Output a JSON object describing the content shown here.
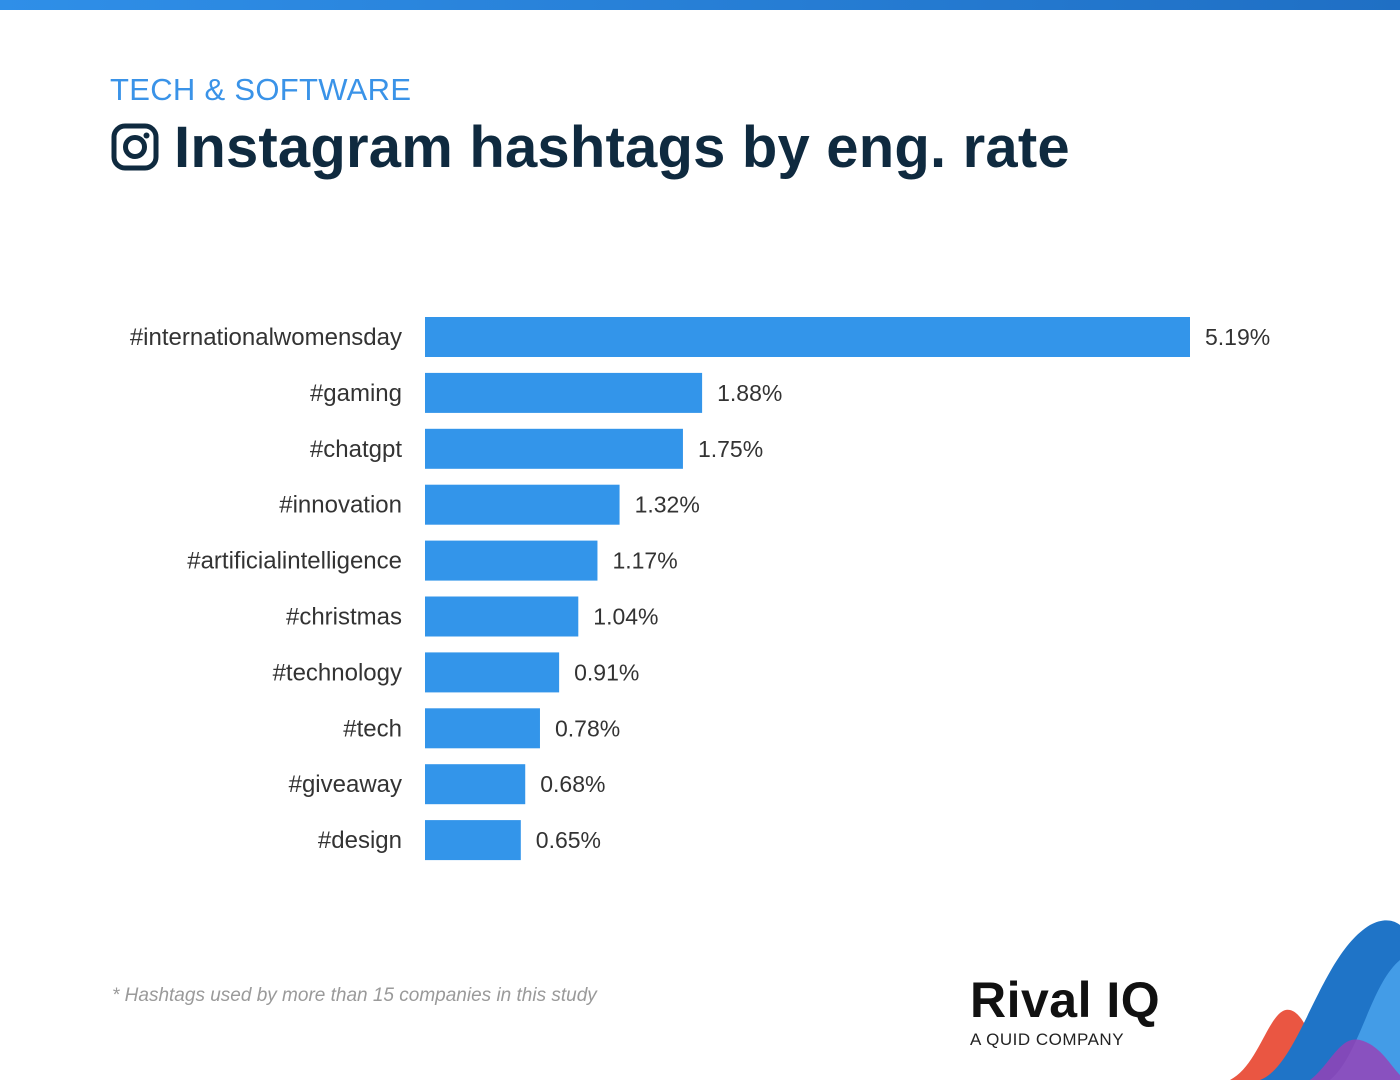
{
  "header": {
    "category": "TECH & SOFTWARE",
    "title": "Instagram hashtags by eng. rate",
    "icon": "instagram-icon"
  },
  "footer": {
    "footnote": "* Hashtags used by more than 15 companies in this study",
    "logo_name": "Rival IQ",
    "logo_sub": "A QUID COMPANY"
  },
  "colors": {
    "bar": "#3395ea",
    "title": "#0f2a3f",
    "category": "#3a93e8",
    "label": "#333333"
  },
  "chart_data": {
    "type": "bar",
    "orientation": "horizontal",
    "categories": [
      "#internationalwomensday",
      "#gaming",
      "#chatgpt",
      "#innovation",
      "#artificialintelligence",
      "#christmas",
      "#technology",
      "#tech",
      "#giveaway",
      "#design"
    ],
    "values": [
      5.19,
      1.88,
      1.75,
      1.32,
      1.17,
      1.04,
      0.91,
      0.78,
      0.68,
      0.65
    ],
    "value_labels": [
      "5.19%",
      "1.88%",
      "1.75%",
      "1.32%",
      "1.17%",
      "1.04%",
      "0.91%",
      "0.78%",
      "0.68%",
      "0.65%"
    ],
    "xlim": [
      0,
      5.19
    ],
    "grid": false,
    "legend": "none"
  }
}
